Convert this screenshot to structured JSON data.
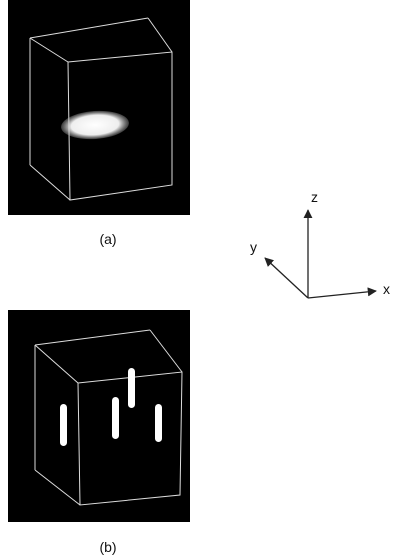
{
  "panels": [
    {
      "label": "(a)"
    },
    {
      "label": "(b)"
    }
  ],
  "axes": {
    "x": "x",
    "y": "y",
    "z": "z"
  }
}
